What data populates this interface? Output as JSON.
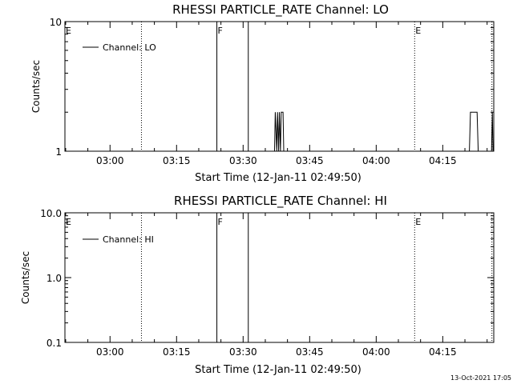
{
  "footer": {
    "timestamp": "13-Oct-2021 17:05"
  },
  "chart_data": [
    {
      "type": "line",
      "title": "RHESSI PARTICLE_RATE Channel: LO",
      "xlabel": "Start Time (12-Jan-11 02:49:50)",
      "ylabel": "Counts/sec",
      "yscale": "log",
      "xlim": [
        "02:49:50",
        "04:26:30"
      ],
      "ylim": [
        1,
        10
      ],
      "x_ticks": [
        "03:00",
        "03:15",
        "03:30",
        "03:45",
        "04:00",
        "04:15"
      ],
      "y_ticks": [
        "1",
        "10"
      ],
      "legend": {
        "position": "top-left",
        "entries": [
          "Channel: LO"
        ]
      },
      "series": [
        {
          "name": "Channel: LO",
          "points": [
            [
              "03:37:05",
              1
            ],
            [
              "03:37:15",
              2
            ],
            [
              "03:37:35",
              1
            ],
            [
              "03:37:45",
              2
            ],
            [
              "03:38:00",
              1
            ],
            [
              "03:38:10",
              2
            ],
            [
              "03:38:25",
              1
            ],
            [
              "03:38:35",
              2
            ],
            [
              "03:39:00",
              2
            ],
            [
              "03:39:10",
              1
            ],
            [
              "04:21:00",
              1
            ],
            [
              "04:21:15",
              2
            ],
            [
              "04:22:45",
              2
            ],
            [
              "04:23:00",
              1
            ],
            [
              "04:26:00",
              1
            ],
            [
              "04:26:10",
              2
            ],
            [
              "04:26:20",
              1
            ]
          ]
        }
      ],
      "markers": [
        {
          "label": "E",
          "time": "02:49:50",
          "style": "dotted"
        },
        {
          "label": "",
          "time": "03:07:05",
          "style": "dotted"
        },
        {
          "label": "F",
          "time": "03:24:05",
          "style": "solid"
        },
        {
          "label": "",
          "time": "03:31:10",
          "style": "solid"
        },
        {
          "label": "E",
          "time": "04:08:40",
          "style": "dotted"
        },
        {
          "label": "",
          "time": "04:26:05",
          "style": "dotted"
        }
      ]
    },
    {
      "type": "line",
      "title": "RHESSI PARTICLE_RATE Channel: HI",
      "xlabel": "Start Time (12-Jan-11 02:49:50)",
      "ylabel": "Counts/sec",
      "yscale": "log",
      "xlim": [
        "02:49:50",
        "04:26:30"
      ],
      "ylim": [
        0.1,
        10
      ],
      "x_ticks": [
        "03:00",
        "03:15",
        "03:30",
        "03:45",
        "04:00",
        "04:15"
      ],
      "y_ticks": [
        "0.1",
        "1.0",
        "10.0"
      ],
      "legend": {
        "position": "top-left",
        "entries": [
          "Channel: HI"
        ]
      },
      "series": [
        {
          "name": "Channel: HI",
          "points": []
        }
      ],
      "markers": [
        {
          "label": "E",
          "time": "02:49:50",
          "style": "dotted"
        },
        {
          "label": "",
          "time": "03:07:05",
          "style": "dotted"
        },
        {
          "label": "F",
          "time": "03:24:05",
          "style": "solid"
        },
        {
          "label": "",
          "time": "03:31:10",
          "style": "solid"
        },
        {
          "label": "E",
          "time": "04:08:40",
          "style": "dotted"
        },
        {
          "label": "",
          "time": "04:26:05",
          "style": "dotted"
        }
      ]
    }
  ]
}
